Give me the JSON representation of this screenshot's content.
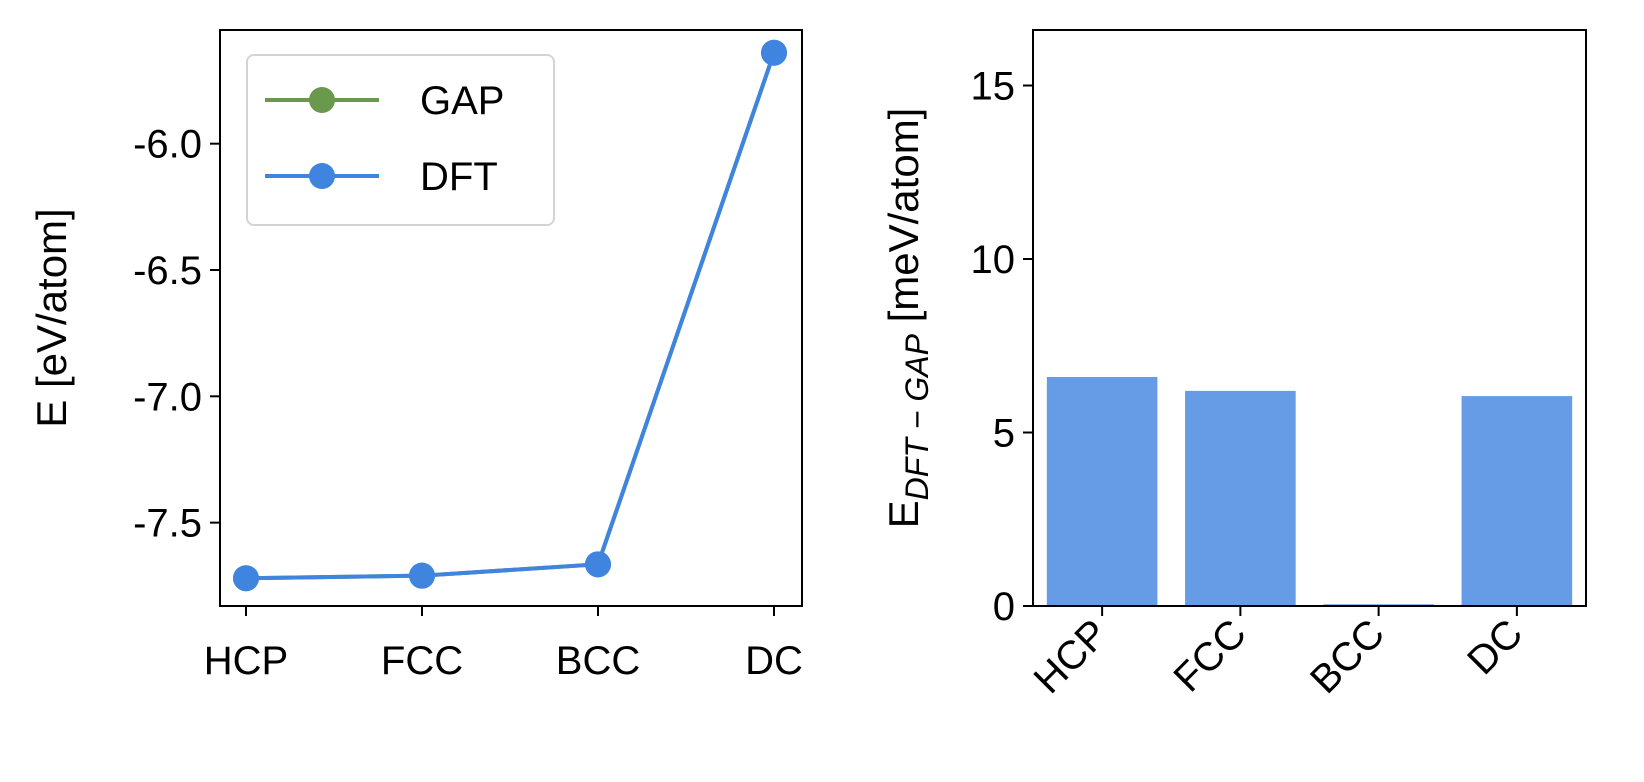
{
  "chart_data": [
    {
      "type": "line",
      "title": "",
      "xlabel": "",
      "ylabel": "E [eV/atom]",
      "categories": [
        "HCP",
        "FCC",
        "BCC",
        "DC"
      ],
      "ylim": [
        -7.83,
        -5.55
      ],
      "yticks": [
        -6.0,
        -6.5,
        -7.0,
        -7.5
      ],
      "ytick_labels": [
        "-6.0",
        "-6.5",
        "-7.0",
        "-7.5"
      ],
      "legend_placement": "top-left",
      "series": [
        {
          "name": "GAP",
          "color": "#6a994e",
          "values": [
            -7.72,
            -7.71,
            -7.665,
            -5.64
          ]
        },
        {
          "name": "DFT",
          "color": "#3f85e0",
          "values": [
            -7.72,
            -7.71,
            -7.665,
            -5.64
          ]
        }
      ]
    },
    {
      "type": "bar",
      "title": "",
      "xlabel": "",
      "ylabel_main": "E",
      "ylabel_sub": "DFT − GAP",
      "ylabel_rest": " [meV/atom]",
      "categories": [
        "HCP",
        "FCC",
        "BCC",
        "DC"
      ],
      "values": [
        6.6,
        6.2,
        0.05,
        6.05
      ],
      "ylim": [
        0,
        16.6
      ],
      "yticks": [
        0,
        5,
        10,
        15
      ],
      "ytick_labels": [
        "0",
        "5",
        "10",
        "15"
      ],
      "color": "#669ce6"
    }
  ]
}
